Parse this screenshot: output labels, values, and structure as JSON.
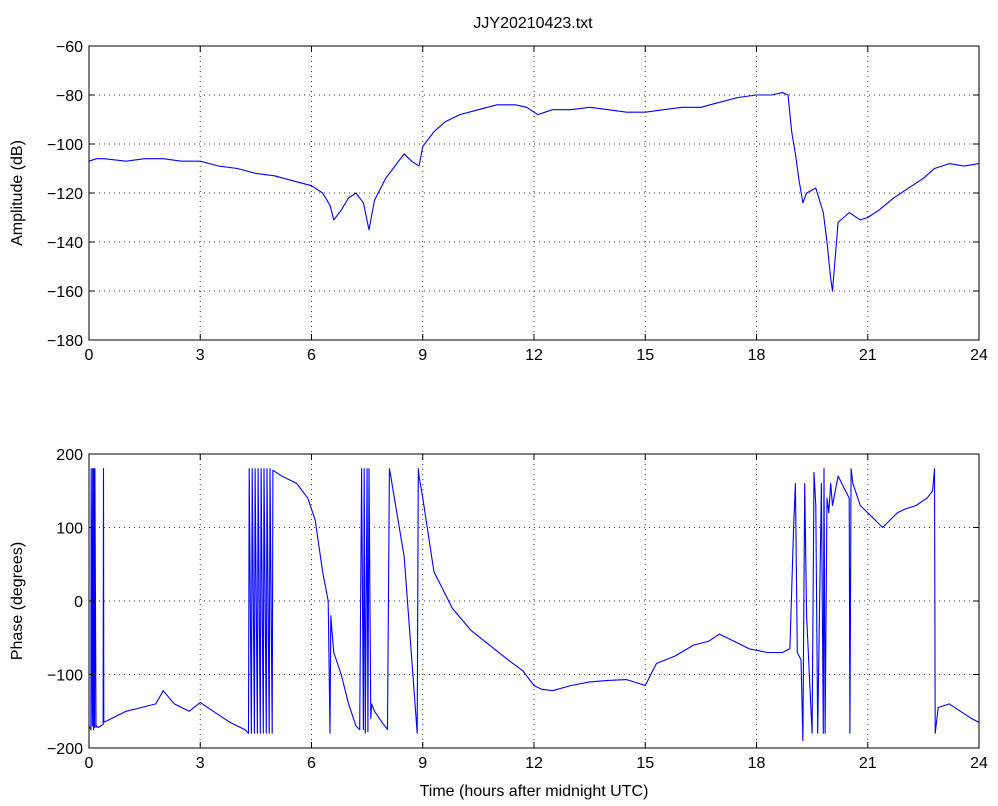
{
  "figure": {
    "title": "JJY20210423.txt",
    "colors": {
      "series": "#0000ff",
      "axes": "#000000",
      "background": "#ffffff"
    }
  },
  "chart_data": [
    {
      "type": "line",
      "title": "JJY20210423.txt",
      "xlabel": "",
      "ylabel": "Amplitude (dB)",
      "xlim": [
        0,
        24
      ],
      "ylim": [
        -180,
        -60
      ],
      "xticks": [
        0,
        3,
        6,
        9,
        12,
        15,
        18,
        21,
        24
      ],
      "yticks": [
        -180,
        -160,
        -140,
        -120,
        -100,
        -80,
        -60
      ],
      "grid": true,
      "series": [
        {
          "x": [
            0,
            0.2,
            0.4,
            1.0,
            1.5,
            2.0,
            2.5,
            3.0,
            3.5,
            4.0,
            4.5,
            5.0,
            5.5,
            6.0,
            6.3,
            6.5,
            6.6,
            6.8,
            7.0,
            7.2,
            7.4,
            7.55,
            7.7,
            8.0,
            8.3,
            8.5,
            8.7,
            8.9,
            9.0,
            9.3,
            9.6,
            10.0,
            10.5,
            11.0,
            11.5,
            11.8,
            12.1,
            12.5,
            13.0,
            13.5,
            14.0,
            14.5,
            15.0,
            15.5,
            16.0,
            16.5,
            17.0,
            17.5,
            18.0,
            18.4,
            18.7,
            18.85,
            18.95,
            19.05,
            19.15,
            19.25,
            19.35,
            19.6,
            19.8,
            19.9,
            20.0,
            20.05,
            20.2,
            20.5,
            20.8,
            21.0,
            21.3,
            21.7,
            22.0,
            22.5,
            22.8,
            23.2,
            23.6,
            24.0
          ],
          "y": [
            -107,
            -106,
            -106,
            -107,
            -106,
            -106,
            -107,
            -107,
            -109,
            -110,
            -112,
            -113,
            -115,
            -117,
            -120,
            -125,
            -131,
            -127,
            -122,
            -120,
            -124,
            -135,
            -123,
            -114,
            -108,
            -104,
            -107,
            -109,
            -101,
            -95,
            -91,
            -88,
            -86,
            -84,
            -84,
            -85,
            -88,
            -86,
            -86,
            -85,
            -86,
            -87,
            -87,
            -86,
            -85,
            -85,
            -83,
            -81,
            -80,
            -80,
            -79,
            -80,
            -95,
            -104,
            -115,
            -124,
            -120,
            -118,
            -128,
            -140,
            -155,
            -160,
            -132,
            -128,
            -131,
            -130,
            -127,
            -122,
            -119,
            -114,
            -110,
            -108,
            -109,
            -108
          ]
        }
      ]
    },
    {
      "type": "line",
      "title": "",
      "xlabel": "Time (hours after midnight UTC)",
      "ylabel": "Phase (degrees)",
      "xlim": [
        0,
        24
      ],
      "ylim": [
        -200,
        200
      ],
      "xticks": [
        0,
        3,
        6,
        9,
        12,
        15,
        18,
        21,
        24
      ],
      "yticks": [
        -200,
        -100,
        0,
        100,
        200
      ],
      "grid": true,
      "series": [
        {
          "x": [
            0,
            0.05,
            0.06,
            0.09,
            0.1,
            0.12,
            0.13,
            0.15,
            0.16,
            0.19,
            0.2,
            0.25,
            0.38,
            0.39,
            0.4,
            0.6,
            1.0,
            1.4,
            1.8,
            2.0,
            2.3,
            2.7,
            3.0,
            3.2,
            3.5,
            3.8,
            4.2,
            4.3,
            4.32,
            4.38,
            4.4,
            4.46,
            4.48,
            4.54,
            4.56,
            4.62,
            4.64,
            4.7,
            4.72,
            4.78,
            4.8,
            4.86,
            4.88,
            4.94,
            4.96,
            5.2,
            5.6,
            5.9,
            6.1,
            6.3,
            6.45,
            6.5,
            6.52,
            6.55,
            6.6,
            6.8,
            7.0,
            7.2,
            7.3,
            7.35,
            7.4,
            7.42,
            7.45,
            7.5,
            7.52,
            7.55,
            7.6,
            7.62,
            7.7,
            7.9,
            8.05,
            8.1,
            8.12,
            8.5,
            8.85,
            8.88,
            8.9,
            9.0,
            9.3,
            9.8,
            10.3,
            10.8,
            11.3,
            11.7,
            12.0,
            12.2,
            12.5,
            13.0,
            13.5,
            14.0,
            14.5,
            15.0,
            15.3,
            15.8,
            16.3,
            16.7,
            17.0,
            17.4,
            17.8,
            18.3,
            18.7,
            18.9,
            19.0,
            19.05,
            19.1,
            19.2,
            19.25,
            19.3,
            19.35,
            19.5,
            19.55,
            19.6,
            19.65,
            19.75,
            19.8,
            19.82,
            19.85,
            19.9,
            19.95,
            20.0,
            20.05,
            20.2,
            20.5,
            20.52,
            20.55,
            20.6,
            20.8,
            21.0,
            21.2,
            21.4,
            21.6,
            21.8,
            22.0,
            22.3,
            22.6,
            22.75,
            22.8,
            22.82,
            22.9,
            23.2,
            23.5,
            23.8,
            24.0
          ],
          "y": [
            -170,
            -175,
            180,
            -170,
            180,
            -175,
            180,
            -172,
            180,
            -172,
            -170,
            -172,
            -168,
            180,
            -165,
            -160,
            -150,
            -145,
            -140,
            -122,
            -140,
            -150,
            -138,
            -145,
            -155,
            -165,
            -175,
            -180,
            180,
            -180,
            180,
            -180,
            180,
            -180,
            180,
            -180,
            180,
            -180,
            180,
            -180,
            180,
            -180,
            180,
            -180,
            178,
            170,
            160,
            140,
            110,
            40,
            0,
            -180,
            -20,
            -40,
            -70,
            -100,
            -140,
            -170,
            -175,
            180,
            -175,
            180,
            -180,
            180,
            -178,
            180,
            -160,
            -140,
            -150,
            -165,
            -175,
            180,
            175,
            60,
            -180,
            180,
            170,
            140,
            40,
            -10,
            -40,
            -60,
            -80,
            -95,
            -115,
            -120,
            -122,
            -115,
            -110,
            -108,
            -107,
            -115,
            -85,
            -75,
            -60,
            -55,
            -45,
            -55,
            -65,
            -70,
            -70,
            -65,
            100,
            160,
            -70,
            -80,
            -190,
            160,
            -20,
            -180,
            175,
            130,
            -180,
            160,
            -180,
            180,
            -180,
            140,
            120,
            160,
            130,
            170,
            140,
            -180,
            180,
            160,
            130,
            120,
            110,
            100,
            110,
            120,
            125,
            130,
            140,
            150,
            180,
            -180,
            -145,
            -140,
            -150,
            -160,
            -165
          ]
        }
      ]
    }
  ]
}
